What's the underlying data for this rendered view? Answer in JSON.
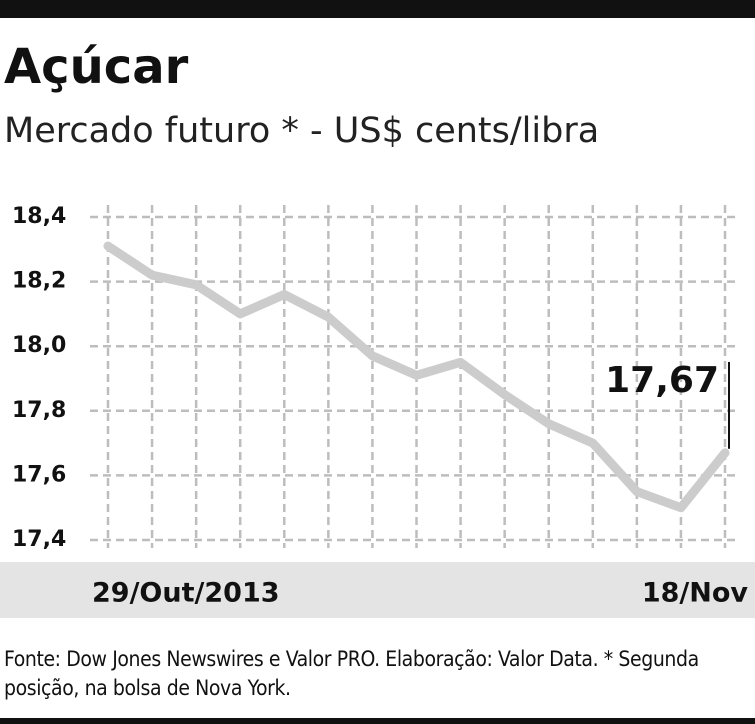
{
  "chart_data": {
    "type": "line",
    "title": "Açúcar",
    "subtitle": "Mercado futuro * - US$ cents/libra",
    "categories": [
      "29/Out/2013",
      null,
      null,
      null,
      null,
      null,
      null,
      null,
      null,
      null,
      null,
      null,
      null,
      null,
      "18/Nov"
    ],
    "series": [
      {
        "name": null,
        "color": "#cccccc",
        "values": [
          18.31,
          18.22,
          18.19,
          18.1,
          18.16,
          18.09,
          17.97,
          17.91,
          17.95,
          17.85,
          17.76,
          17.7,
          17.55,
          17.5,
          17.67
        ],
        "value_labels": [
          null,
          null,
          null,
          null,
          null,
          null,
          null,
          null,
          null,
          null,
          null,
          null,
          null,
          null,
          "17,67"
        ]
      }
    ],
    "ylim": [
      17.4,
      18.4
    ],
    "yticks": [
      {
        "value": 17.4,
        "label": "17,4"
      },
      {
        "value": 17.6,
        "label": "17,6"
      },
      {
        "value": 17.8,
        "label": "17,8"
      },
      {
        "value": 18.0,
        "label": "18,0"
      },
      {
        "value": 18.2,
        "label": "18,2"
      },
      {
        "value": 18.4,
        "label": "18,4"
      }
    ],
    "grid": true,
    "source": "Fonte: Dow Jones Newswires e Valor PRO. Elaboração: Valor Data. * Segunda posição, na bolsa de Nova York."
  }
}
